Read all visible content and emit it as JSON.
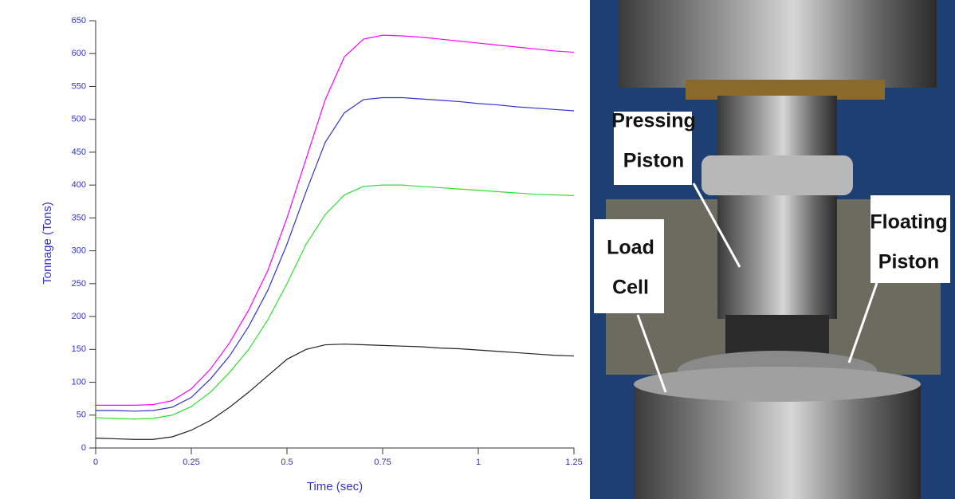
{
  "chart_data": {
    "type": "line",
    "x_label": "Time (sec)",
    "y_label": "Tonnage (Tons)",
    "x": [
      0,
      0.05,
      0.1,
      0.15,
      0.2,
      0.25,
      0.3,
      0.35,
      0.4,
      0.45,
      0.5,
      0.55,
      0.6,
      0.65,
      0.7,
      0.75,
      0.8,
      0.85,
      0.9,
      0.95,
      1,
      1.05,
      1.1,
      1.15,
      1.2,
      1.25
    ],
    "series": [
      {
        "color": "#ff00ff",
        "values": [
          65,
          65,
          65,
          66,
          72,
          90,
          120,
          160,
          210,
          270,
          350,
          440,
          530,
          595,
          622,
          628,
          627,
          625,
          622,
          619,
          616,
          613,
          610,
          607,
          604,
          602
        ]
      },
      {
        "color": "#3333cc",
        "values": [
          57,
          57,
          56,
          57,
          62,
          77,
          105,
          140,
          185,
          240,
          310,
          390,
          465,
          510,
          530,
          533,
          533,
          531,
          529,
          527,
          524,
          522,
          519,
          517,
          515,
          513
        ]
      },
      {
        "color": "#33dd33",
        "values": [
          46,
          45,
          44,
          45,
          50,
          63,
          85,
          115,
          150,
          195,
          250,
          310,
          355,
          385,
          398,
          400,
          400,
          398,
          396,
          394,
          392,
          390,
          388,
          386,
          385,
          384
        ]
      },
      {
        "color": "#222222",
        "values": [
          15,
          14,
          13,
          13,
          17,
          27,
          42,
          62,
          85,
          110,
          135,
          150,
          157,
          158,
          157,
          156,
          155,
          154,
          152,
          151,
          149,
          147,
          145,
          143,
          141,
          140
        ]
      }
    ],
    "xlim": [
      0,
      1.25
    ],
    "xticks": [
      0,
      0.25,
      0.5,
      0.75,
      1,
      1.25
    ],
    "ylim": [
      0,
      650
    ],
    "yticks": [
      0,
      50,
      100,
      150,
      200,
      250,
      300,
      350,
      400,
      450,
      500,
      550,
      600,
      650
    ]
  },
  "photo_labels": [
    {
      "lines": [
        "Pressing",
        "Piston"
      ]
    },
    {
      "lines": [
        "Load",
        "Cell"
      ]
    },
    {
      "lines": [
        "Floating",
        "Piston"
      ]
    }
  ]
}
